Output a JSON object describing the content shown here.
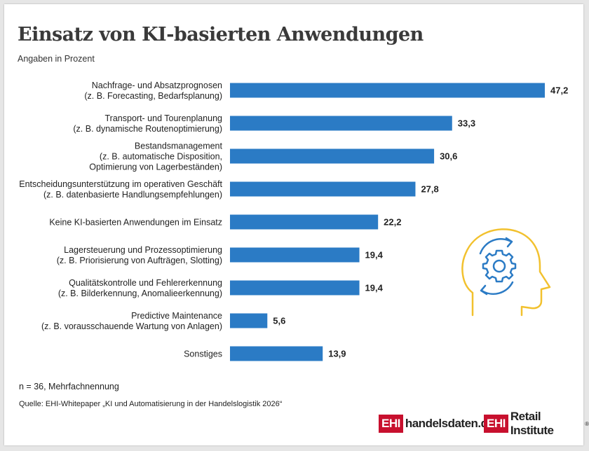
{
  "title": "Einsatz von KI-basierten Anwendungen",
  "subtitle": "Angaben in Prozent",
  "footnote": "n = 36, Mehrfachnennung",
  "source": "Quelle: EHI-Whitepaper „KI und Automatisierung in der Handelslogistik 2026“",
  "logos": {
    "logo1_box": "EHI",
    "logo1_text": "handelsdaten.de",
    "logo2_box": "EHI",
    "logo2_text": "Retail Institute",
    "logo2_mark": "®"
  },
  "colors": {
    "bar": "#2b7bc5",
    "icon_head": "#f2c12e",
    "icon_gear": "#2b7bc5",
    "brand_red": "#c8102e"
  },
  "chart_data": {
    "type": "bar",
    "orientation": "horizontal",
    "categories": [
      [
        "Nachfrage- und Absatzprognosen",
        "(z. B. Forecasting, Bedarfsplanung)"
      ],
      [
        "Transport- und Tourenplanung",
        "(z. B. dynamische Routenoptimierung)"
      ],
      [
        "Bestandsmanagement",
        "(z. B. automatische Disposition,",
        "Optimierung von Lagerbeständen)"
      ],
      [
        "Entscheidungsunterstützung im operativen Geschäft",
        "(z. B. datenbasierte Handlungsempfehlungen)"
      ],
      [
        "Keine KI-basierten Anwendungen im Einsatz"
      ],
      [
        "Lagersteuerung und Prozessoptimierung",
        "(z. B. Priorisierung von Aufträgen, Slotting)"
      ],
      [
        "Qualitätskontrolle und Fehlererkennung",
        "(z. B. Bilderkennung, Anomalieerkennung)"
      ],
      [
        "Predictive Maintenance",
        "(z. B. vorausschauende Wartung von Anlagen)"
      ],
      [
        "Sonstiges"
      ]
    ],
    "values": [
      47.2,
      33.3,
      30.6,
      27.8,
      22.2,
      19.4,
      19.4,
      5.6,
      13.9
    ],
    "value_labels": [
      "47,2",
      "33,3",
      "30,6",
      "27,8",
      "22,2",
      "19,4",
      "19,4",
      "5,6",
      "13,9"
    ],
    "xlim": [
      0,
      47.2
    ],
    "grid": false,
    "legend": "none"
  }
}
